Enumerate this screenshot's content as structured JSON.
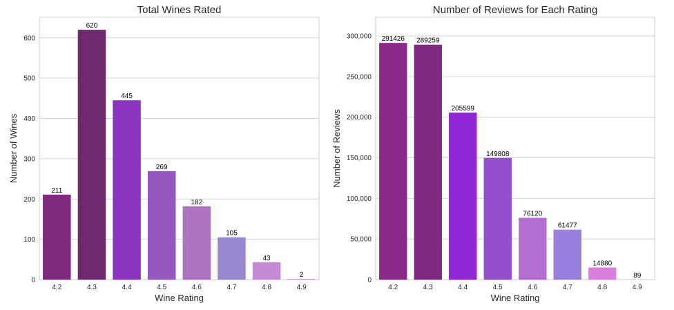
{
  "chart_data": [
    {
      "type": "bar",
      "title": "Total Wines Rated",
      "xlabel": "Wine Rating",
      "ylabel": "Number of Wines",
      "categories": [
        "4.2",
        "4.3",
        "4.4",
        "4.5",
        "4.6",
        "4.7",
        "4.8",
        "4.9"
      ],
      "values": [
        211,
        620,
        445,
        269,
        182,
        105,
        43,
        2
      ],
      "data_labels": [
        "211",
        "620",
        "445",
        "269",
        "182",
        "105",
        "43",
        "2"
      ],
      "ylim": [
        0,
        651
      ],
      "yticks": [
        0,
        100,
        200,
        300,
        400,
        500,
        600
      ],
      "ytick_labels": [
        "0",
        "100",
        "200",
        "300",
        "400",
        "500",
        "600"
      ],
      "grid": "y",
      "colors": [
        "#7e2a7e",
        "#6f2a6f",
        "#8a34bf",
        "#9458be",
        "#ad72c2",
        "#9988d0",
        "#c48bd2",
        "#c9a0dc"
      ]
    },
    {
      "type": "bar",
      "title": "Number of Reviews for Each Rating",
      "xlabel": "Wine Rating",
      "ylabel": "Number of Reviews",
      "categories": [
        "4.2",
        "4.3",
        "4.4",
        "4.5",
        "4.6",
        "4.7",
        "4.8",
        "4.9"
      ],
      "values": [
        291426,
        289259,
        205599,
        149808,
        76120,
        61477,
        14880,
        89
      ],
      "data_labels": [
        "291426",
        "289259",
        "205599",
        "149808",
        "76120",
        "61477",
        "14880",
        "89"
      ],
      "ylim": [
        0,
        323000
      ],
      "yticks": [
        0,
        50000,
        100000,
        150000,
        200000,
        250000,
        300000
      ],
      "ytick_labels": [
        "0",
        "50,000",
        "100,000",
        "150,000",
        "200,000",
        "250,000",
        "300,000"
      ],
      "grid": "y",
      "colors": [
        "#8c2a8c",
        "#7f2a82",
        "#9026d6",
        "#934fcc",
        "#b46ed2",
        "#9a80de",
        "#d880dc",
        "#e0a8e8"
      ]
    }
  ]
}
